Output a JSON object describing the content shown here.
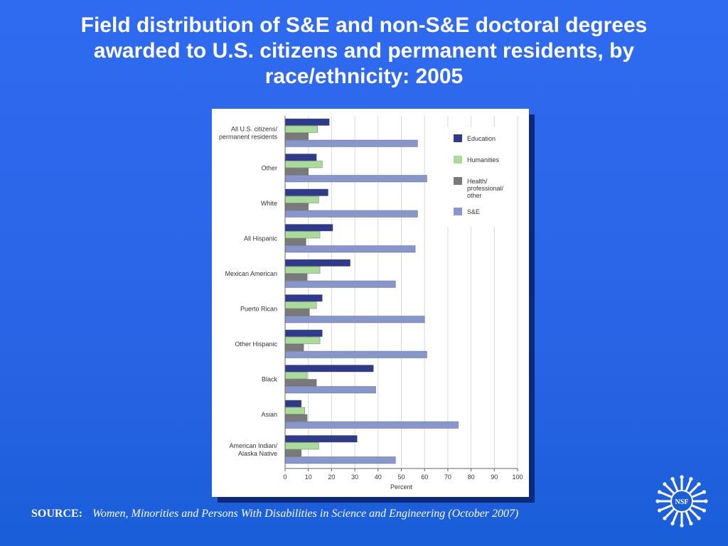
{
  "slide": {
    "title": "Field distribution of S&E and non-S&E doctoral degrees awarded to U.S. citizens and permanent residents, by race/ethnicity: 2005",
    "source_label": "SOURCE:",
    "source_text": "Women, Minorities and Persons With Disabilities in Science and Engineering (October 2007)",
    "logo_text": "NSF"
  },
  "chart_data": {
    "type": "bar",
    "orientation": "horizontal",
    "categories": [
      "All U.S. citizens/\npermanent residents",
      "Other",
      "White",
      "All Hispanic",
      "Mexican American",
      "Puerto Rican",
      "Other Hispanic",
      "Black",
      "Asian",
      "American Indian/\nAlaska Native"
    ],
    "series": [
      {
        "name": "Education",
        "color": "#2e3b8c",
        "values": [
          19,
          13.5,
          18.5,
          20.5,
          28,
          16,
          16,
          38,
          7,
          31
        ]
      },
      {
        "name": "Humanities",
        "color": "#a8dc98",
        "values": [
          14,
          16,
          14.5,
          15,
          15,
          13.5,
          15,
          9.5,
          8.5,
          14.5
        ]
      },
      {
        "name": "Health/\nprofessional/\nother",
        "color": "#7a7a7a",
        "values": [
          10,
          10,
          10,
          9,
          9.5,
          10.5,
          8,
          13.5,
          9.5,
          7
        ]
      },
      {
        "name": "S&E",
        "color": "#8796cc",
        "values": [
          57,
          61,
          57,
          56,
          47.5,
          60,
          61,
          39,
          74.5,
          47.5
        ]
      }
    ],
    "xlabel": "Percent",
    "ylabel": "",
    "xlim": [
      0,
      100
    ],
    "xticks": [
      0,
      10,
      20,
      30,
      40,
      50,
      60,
      70,
      80,
      90,
      100
    ],
    "grid": true,
    "legend": "top-right"
  }
}
